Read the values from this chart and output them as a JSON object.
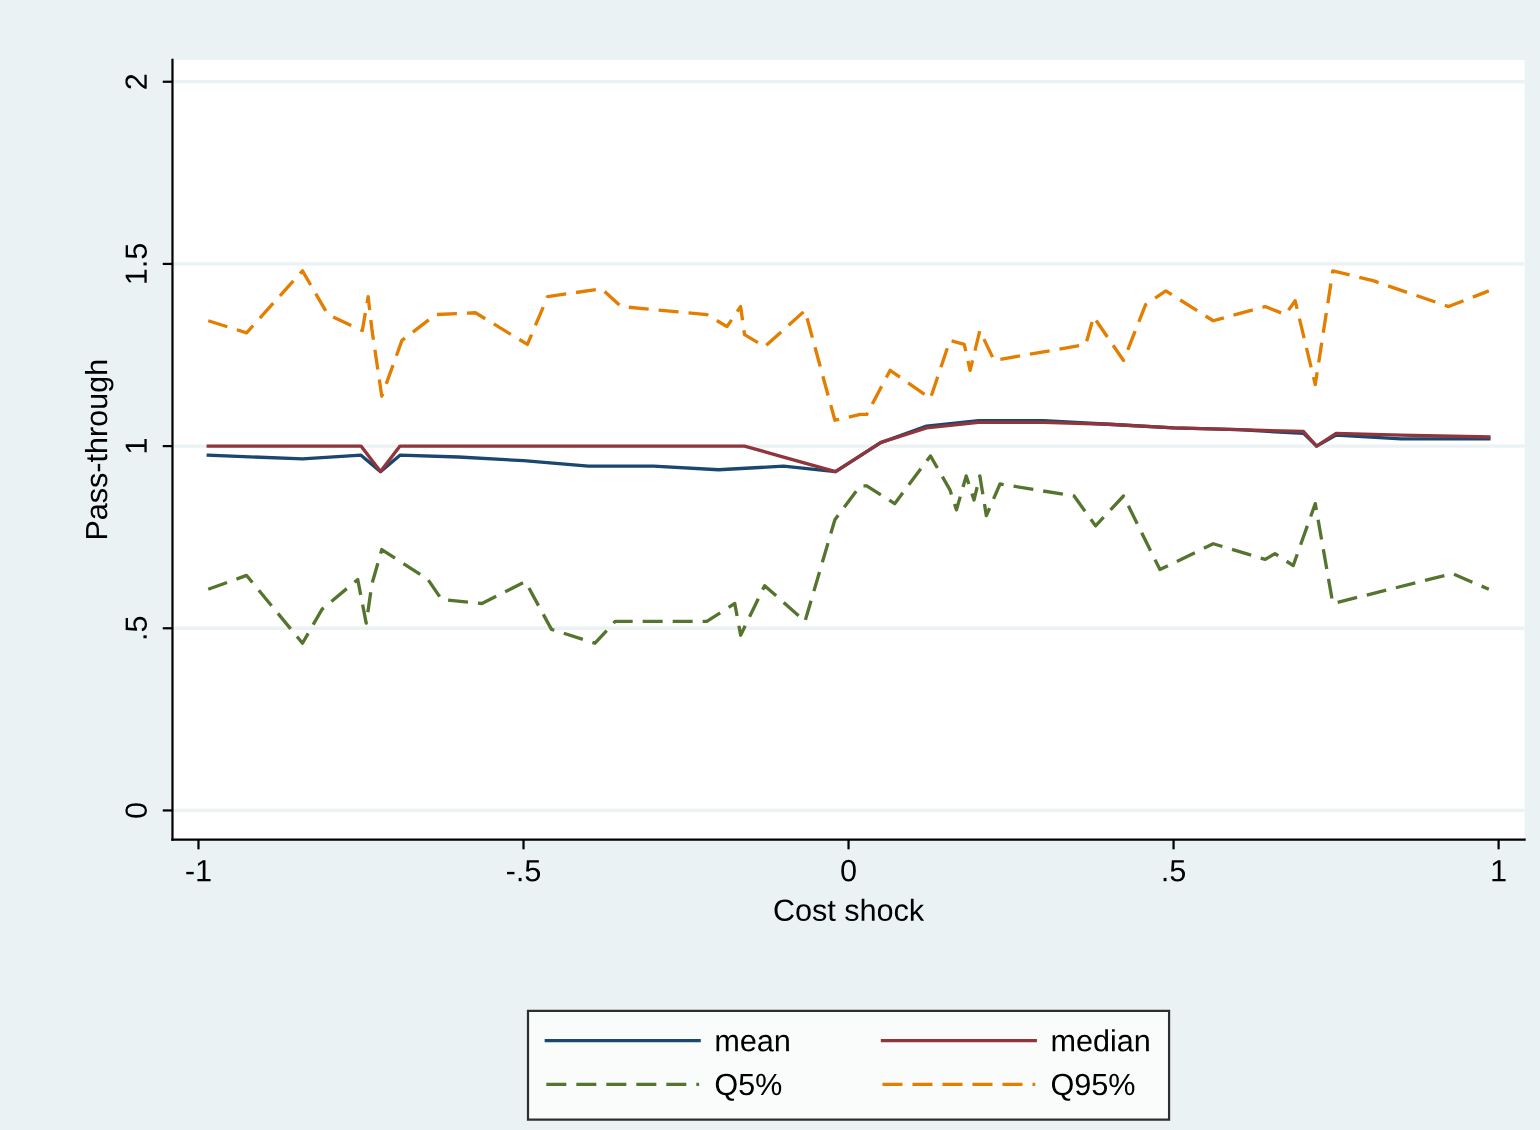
{
  "chart_data": {
    "type": "line",
    "xlabel": "Cost shock",
    "ylabel": "Pass-through",
    "xlim": [
      -1.04,
      1.04
    ],
    "ylim": [
      -0.08,
      2.06
    ],
    "xticks": [
      {
        "value": -1,
        "label": "-1"
      },
      {
        "value": -0.5,
        "label": "-.5"
      },
      0,
      {
        "value": 0.5,
        "label": ".5"
      },
      1
    ],
    "yticks": [
      0,
      {
        "value": 0.5,
        "label": ".5"
      },
      1,
      1.5,
      2
    ],
    "grid": "y",
    "legend": "bottom",
    "marker": "none",
    "series": [
      {
        "name": "mean",
        "color": "#1a476f",
        "line_style": "solid",
        "x": [
          -0.985,
          -0.84,
          -0.75,
          -0.72,
          -0.69,
          -0.6,
          -0.5,
          -0.4,
          -0.3,
          -0.2,
          -0.1,
          -0.02,
          0.05,
          0.12,
          0.2,
          0.3,
          0.4,
          0.5,
          0.6,
          0.7,
          0.72,
          0.75,
          0.85,
          0.985
        ],
        "values": [
          0.975,
          0.965,
          0.975,
          0.93,
          0.975,
          0.97,
          0.96,
          0.945,
          0.945,
          0.935,
          0.945,
          0.93,
          1.01,
          1.055,
          1.07,
          1.07,
          1.06,
          1.05,
          1.045,
          1.035,
          1.0,
          1.03,
          1.02,
          1.02
        ]
      },
      {
        "name": "median",
        "color": "#90353b",
        "line_style": "solid",
        "x": [
          -0.985,
          -0.75,
          -0.72,
          -0.69,
          -0.4,
          -0.16,
          -0.1,
          -0.02,
          0.05,
          0.12,
          0.2,
          0.3,
          0.4,
          0.5,
          0.6,
          0.7,
          0.72,
          0.75,
          0.85,
          0.985
        ],
        "values": [
          1.0,
          1.0,
          0.93,
          1.0,
          1.0,
          1.0,
          0.97,
          0.93,
          1.01,
          1.05,
          1.065,
          1.065,
          1.06,
          1.05,
          1.045,
          1.04,
          1.0,
          1.035,
          1.03,
          1.025
        ]
      },
      {
        "name": "Q5%",
        "color": "#55752f",
        "line_style": "dashed",
        "x": [
          -0.985,
          -0.926,
          -0.84,
          -0.81,
          -0.755,
          -0.742,
          -0.733,
          -0.718,
          -0.647,
          -0.626,
          -0.564,
          -0.497,
          -0.457,
          -0.39,
          -0.359,
          -0.218,
          -0.175,
          -0.166,
          -0.129,
          -0.067,
          -0.021,
          0.018,
          0.028,
          0.071,
          0.126,
          0.156,
          0.166,
          0.181,
          0.193,
          0.202,
          0.212,
          0.233,
          0.347,
          0.38,
          0.423,
          0.479,
          0.561,
          0.641,
          0.656,
          0.684,
          0.718,
          0.745,
          0.929,
          0.985
        ],
        "values": [
          0.607,
          0.645,
          0.459,
          0.552,
          0.634,
          0.514,
          0.623,
          0.716,
          0.634,
          0.579,
          0.568,
          0.628,
          0.497,
          0.459,
          0.519,
          0.519,
          0.568,
          0.481,
          0.617,
          0.519,
          0.798,
          0.891,
          0.891,
          0.842,
          0.973,
          0.88,
          0.825,
          0.918,
          0.852,
          0.918,
          0.809,
          0.896,
          0.863,
          0.781,
          0.863,
          0.661,
          0.732,
          0.689,
          0.705,
          0.672,
          0.842,
          0.568,
          0.65,
          0.607
        ]
      },
      {
        "name": "Q95%",
        "color": "#e37e00",
        "line_style": "dashed",
        "x": [
          -0.985,
          -0.926,
          -0.84,
          -0.801,
          -0.748,
          -0.739,
          -0.733,
          -0.718,
          -0.687,
          -0.635,
          -0.574,
          -0.494,
          -0.463,
          -0.38,
          -0.35,
          -0.218,
          -0.187,
          -0.166,
          -0.16,
          -0.129,
          -0.067,
          -0.021,
          0.018,
          0.028,
          0.064,
          0.126,
          0.156,
          0.178,
          0.187,
          0.202,
          0.224,
          0.365,
          0.377,
          0.423,
          0.457,
          0.488,
          0.561,
          0.641,
          0.672,
          0.687,
          0.718,
          0.745,
          0.807,
          0.923,
          0.985
        ],
        "values": [
          1.344,
          1.311,
          1.481,
          1.361,
          1.317,
          1.41,
          1.317,
          1.137,
          1.29,
          1.361,
          1.366,
          1.279,
          1.41,
          1.432,
          1.383,
          1.361,
          1.328,
          1.383,
          1.306,
          1.273,
          1.372,
          1.071,
          1.087,
          1.087,
          1.208,
          1.131,
          1.29,
          1.279,
          1.208,
          1.317,
          1.235,
          1.279,
          1.355,
          1.235,
          1.388,
          1.426,
          1.344,
          1.383,
          1.361,
          1.399,
          1.169,
          1.481,
          1.454,
          1.383,
          1.426
        ]
      }
    ]
  }
}
